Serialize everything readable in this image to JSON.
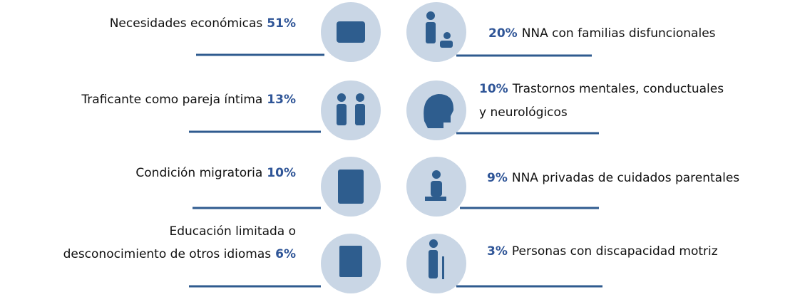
{
  "left": [
    {
      "lines": [
        "Necesidades económicas"
      ],
      "percent": "51%"
    },
    {
      "lines": [
        "Traficante como pareja íntima"
      ],
      "percent": "13%"
    },
    {
      "lines": [
        "Condición migratoria"
      ],
      "percent": "10%"
    },
    {
      "lines": [
        "Educación limitada o",
        "desconocimiento de otros idiomas"
      ],
      "percent": "6%"
    }
  ],
  "right": [
    {
      "percent": "20%",
      "lines": [
        "NNA con familias disfuncionales"
      ]
    },
    {
      "percent": "10%",
      "lines": [
        "Trastornos mentales, conductuales",
        "y neurológicos"
      ]
    },
    {
      "percent": "9%",
      "lines": [
        "NNA privadas de cuidados parentales"
      ]
    },
    {
      "percent": "3%",
      "lines": [
        "Personas con discapacidad motriz"
      ]
    }
  ]
}
